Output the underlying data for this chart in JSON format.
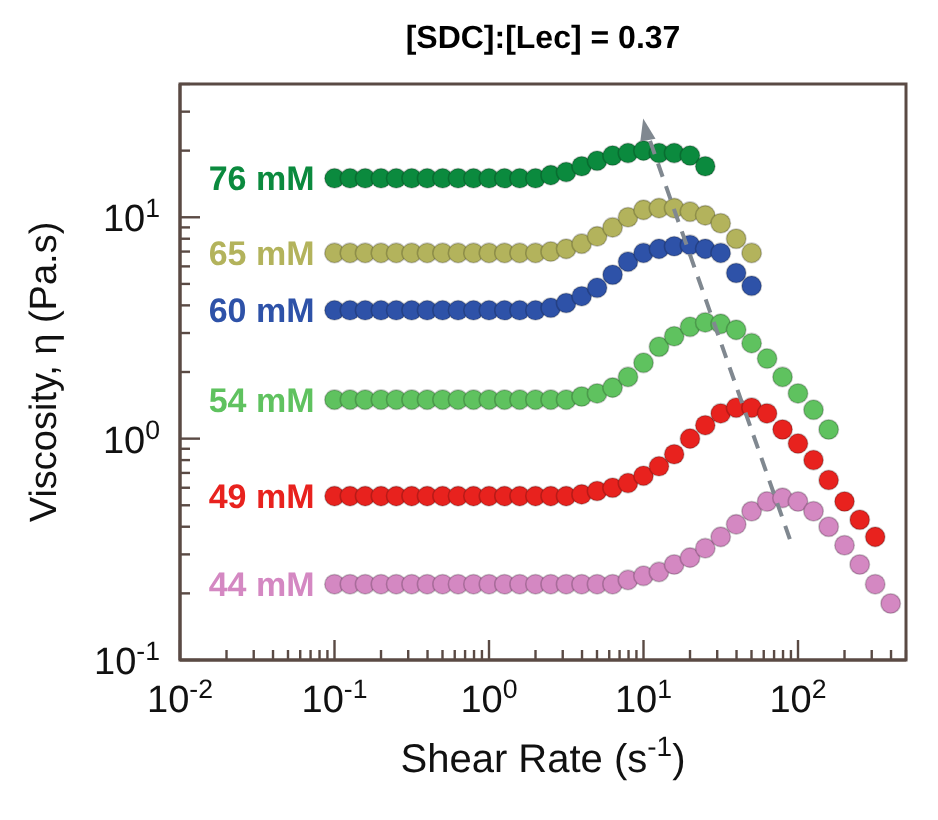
{
  "chart_data": {
    "type": "scatter",
    "title": "[SDC]:[Lec] = 0.37",
    "xlabel": "Shear Rate (s$^{-1}$)",
    "ylabel": "Viscosity, η (Pa.s)",
    "log": "xy",
    "legend": false,
    "grid": false,
    "marker": "circle",
    "xlim": [
      0.01,
      500
    ],
    "ylim": [
      0.1,
      40
    ],
    "xticks": [
      {
        "value": 0.01,
        "label": "10$^{-2}$"
      },
      {
        "value": 0.02,
        "label": null
      },
      {
        "value": 0.03,
        "label": null
      },
      {
        "value": 0.04,
        "label": null
      },
      {
        "value": 0.05,
        "label": null
      },
      {
        "value": 0.06,
        "label": null
      },
      {
        "value": 0.07,
        "label": null
      },
      {
        "value": 0.08,
        "label": null
      },
      {
        "value": 0.09,
        "label": null
      },
      {
        "value": 0.1,
        "label": "10$^{-1}$"
      },
      {
        "value": 0.2,
        "label": null
      },
      {
        "value": 0.3,
        "label": null
      },
      {
        "value": 0.4,
        "label": null
      },
      {
        "value": 0.5,
        "label": null
      },
      {
        "value": 0.6,
        "label": null
      },
      {
        "value": 0.7,
        "label": null
      },
      {
        "value": 0.8,
        "label": null
      },
      {
        "value": 0.9,
        "label": null
      },
      {
        "value": 1,
        "label": "10$^{0}$"
      },
      {
        "value": 2,
        "label": null
      },
      {
        "value": 3,
        "label": null
      },
      {
        "value": 4,
        "label": null
      },
      {
        "value": 5,
        "label": null
      },
      {
        "value": 6,
        "label": null
      },
      {
        "value": 7,
        "label": null
      },
      {
        "value": 8,
        "label": null
      },
      {
        "value": 9,
        "label": null
      },
      {
        "value": 10,
        "label": "10$^{1}$"
      },
      {
        "value": 20,
        "label": null
      },
      {
        "value": 30,
        "label": null
      },
      {
        "value": 40,
        "label": null
      },
      {
        "value": 50,
        "label": null
      },
      {
        "value": 60,
        "label": null
      },
      {
        "value": 70,
        "label": null
      },
      {
        "value": 80,
        "label": null
      },
      {
        "value": 90,
        "label": null
      },
      {
        "value": 100,
        "label": "10$^{2}$"
      },
      {
        "value": 200,
        "label": null
      },
      {
        "value": 300,
        "label": null
      },
      {
        "value": 400,
        "label": null
      },
      {
        "value": 500,
        "label": null
      }
    ],
    "yticks": [
      {
        "value": 0.1,
        "label": "10$^{-1}$"
      },
      {
        "value": 0.2,
        "label": null
      },
      {
        "value": 0.3,
        "label": null
      },
      {
        "value": 0.4,
        "label": null
      },
      {
        "value": 0.5,
        "label": null
      },
      {
        "value": 0.6,
        "label": null
      },
      {
        "value": 0.7,
        "label": null
      },
      {
        "value": 0.8,
        "label": null
      },
      {
        "value": 0.9,
        "label": null
      },
      {
        "value": 1,
        "label": "10$^{0}$"
      },
      {
        "value": 2,
        "label": null
      },
      {
        "value": 3,
        "label": null
      },
      {
        "value": 4,
        "label": null
      },
      {
        "value": 5,
        "label": null
      },
      {
        "value": 6,
        "label": null
      },
      {
        "value": 7,
        "label": null
      },
      {
        "value": 8,
        "label": null
      },
      {
        "value": 9,
        "label": null
      },
      {
        "value": 10,
        "label": "10$^{1}$"
      },
      {
        "value": 20,
        "label": null
      },
      {
        "value": 30,
        "label": null
      },
      {
        "value": 40,
        "label": null
      }
    ],
    "x": [
      0.1,
      0.126,
      0.158,
      0.2,
      0.251,
      0.316,
      0.398,
      0.501,
      0.631,
      0.794,
      1,
      1.26,
      1.58,
      2,
      2.51,
      3.16,
      3.98,
      5.01,
      6.31,
      7.94,
      10,
      12.6,
      15.8,
      20,
      25.1,
      31.6,
      39.8,
      50.1,
      63.1,
      79.4,
      100,
      126,
      158,
      200,
      251,
      316,
      398
    ],
    "series": [
      {
        "name": "76 mM",
        "color": "#0b8a3e",
        "values": [
          15,
          15,
          15,
          15,
          15,
          15,
          15,
          15,
          15,
          15,
          15,
          15,
          15,
          15,
          15.5,
          16,
          17,
          18,
          19,
          19.5,
          20,
          19.5,
          19.5,
          19,
          17,
          null,
          null,
          null,
          null,
          null,
          null,
          null,
          null,
          null,
          null,
          null,
          null
        ]
      },
      {
        "name": "65 mM",
        "color": "#b3b35c",
        "values": [
          6.9,
          6.9,
          6.9,
          6.9,
          6.9,
          6.9,
          6.9,
          6.9,
          6.9,
          6.9,
          6.9,
          6.9,
          6.9,
          6.9,
          7,
          7.2,
          7.6,
          8.2,
          9,
          10,
          10.8,
          11,
          11,
          10.6,
          10.2,
          9.4,
          8,
          6.9,
          null,
          null,
          null,
          null,
          null,
          null,
          null,
          null,
          null
        ]
      },
      {
        "name": "60 mM",
        "color": "#2e52a8",
        "values": [
          3.8,
          3.8,
          3.8,
          3.8,
          3.8,
          3.8,
          3.8,
          3.8,
          3.8,
          3.8,
          3.8,
          3.8,
          3.8,
          3.8,
          3.9,
          4.1,
          4.4,
          4.8,
          5.5,
          6.3,
          6.9,
          7.2,
          7.4,
          7.5,
          7.2,
          6.9,
          5.6,
          4.9,
          null,
          null,
          null,
          null,
          null,
          null,
          null,
          null,
          null
        ]
      },
      {
        "name": "54 mM",
        "color": "#5fc25f",
        "values": [
          1.5,
          1.5,
          1.5,
          1.5,
          1.5,
          1.5,
          1.5,
          1.5,
          1.5,
          1.5,
          1.5,
          1.5,
          1.5,
          1.5,
          1.5,
          1.5,
          1.55,
          1.6,
          1.7,
          1.9,
          2.2,
          2.6,
          2.9,
          3.2,
          3.35,
          3.3,
          3.1,
          2.7,
          2.3,
          1.9,
          1.6,
          1.35,
          1.1,
          null,
          null,
          null,
          null
        ]
      },
      {
        "name": "49 mM",
        "color": "#e8221e",
        "values": [
          0.55,
          0.55,
          0.55,
          0.55,
          0.55,
          0.55,
          0.55,
          0.55,
          0.55,
          0.55,
          0.55,
          0.55,
          0.55,
          0.55,
          0.55,
          0.55,
          0.56,
          0.58,
          0.6,
          0.63,
          0.68,
          0.75,
          0.85,
          1,
          1.15,
          1.3,
          1.38,
          1.38,
          1.3,
          1.1,
          0.95,
          0.8,
          0.65,
          0.52,
          0.43,
          0.36,
          null
        ]
      },
      {
        "name": "44 mM",
        "color": "#d488c2",
        "values": [
          0.22,
          0.22,
          0.22,
          0.22,
          0.22,
          0.22,
          0.22,
          0.22,
          0.22,
          0.22,
          0.22,
          0.22,
          0.22,
          0.22,
          0.22,
          0.22,
          0.22,
          0.22,
          0.22,
          0.23,
          0.24,
          0.25,
          0.27,
          0.29,
          0.32,
          0.36,
          0.41,
          0.47,
          0.52,
          0.54,
          0.52,
          0.47,
          0.4,
          0.33,
          0.27,
          0.22,
          0.18
        ]
      }
    ]
  }
}
